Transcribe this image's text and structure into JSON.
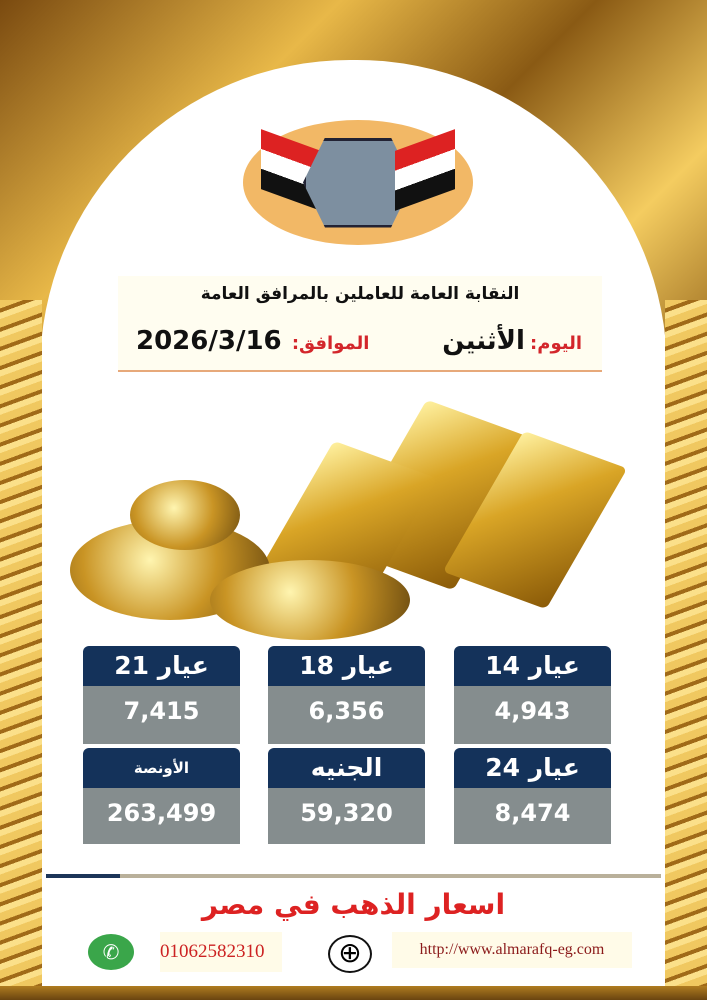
{
  "header": {
    "org_name": "النقابة العامة للعاملين بالمرافق العامة",
    "day_label": "اليوم:",
    "day_value": "الأثنين",
    "date_label": "الموافق:",
    "date_value": "2026/3/16",
    "logo_text": "النقابة العامة للعاملين بالمرافق العامة"
  },
  "prices": [
    {
      "label": "عيار 21",
      "value": "7,415"
    },
    {
      "label": "عيار 18",
      "value": "6,356"
    },
    {
      "label": "عيار 14",
      "value": "4,943"
    },
    {
      "label": "الأونصة",
      "value": "263,499"
    },
    {
      "label": "الجنيه",
      "value": "59,320"
    },
    {
      "label": "عيار 24",
      "value": "8,474"
    }
  ],
  "footer": {
    "title": "اسعار الذهب في مصر",
    "phone": "01062582310",
    "url": "http://www.almarafq-eg.com"
  },
  "colors": {
    "card_header": "#14325a",
    "card_value": "#858d8e",
    "accent_red": "#d22",
    "gold": "#e8b848"
  }
}
